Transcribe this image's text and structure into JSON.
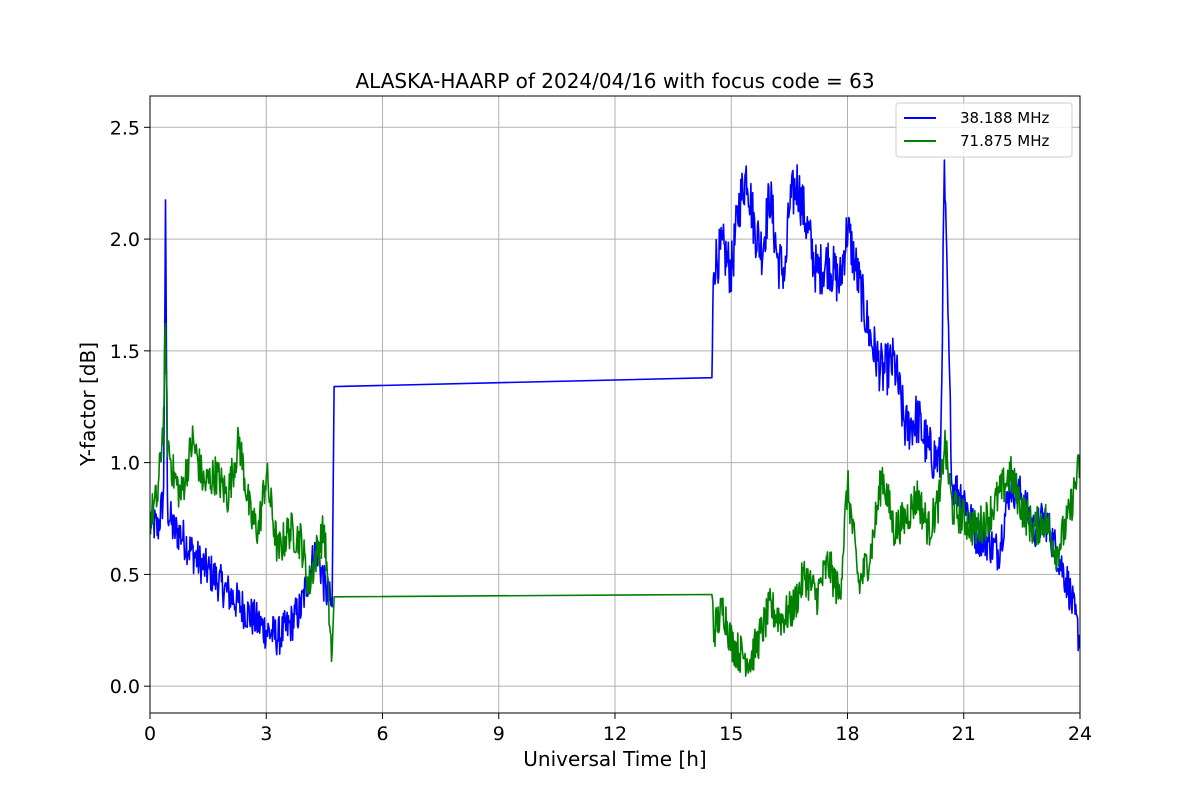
{
  "chart_data": {
    "type": "line",
    "title": "ALASKA-HAARP of 2024/04/16 with focus code = 63",
    "xlabel": "Universal Time [h]",
    "ylabel": "Y-factor [dB]",
    "xlim": [
      0,
      24
    ],
    "ylim": [
      -0.12,
      2.64
    ],
    "xticks": [
      0,
      3,
      6,
      9,
      12,
      15,
      18,
      21,
      24
    ],
    "yticks": [
      0.0,
      0.5,
      1.0,
      1.5,
      2.0,
      2.5
    ],
    "xtick_labels": [
      "0",
      "3",
      "6",
      "9",
      "12",
      "15",
      "18",
      "21",
      "24"
    ],
    "ytick_labels": [
      "0.0",
      "0.5",
      "1.0",
      "1.5",
      "2.0",
      "2.5"
    ],
    "grid": true,
    "legend_position": "top-right",
    "series": [
      {
        "name": "38.188 MHz",
        "color": "#0000ff",
        "x": [
          0,
          0.2,
          0.35,
          0.4,
          0.45,
          0.6,
          0.8,
          1.0,
          1.3,
          1.6,
          2.0,
          2.4,
          2.8,
          3.0,
          3.3,
          3.6,
          3.9,
          4.1,
          4.3,
          4.5,
          4.7,
          4.75,
          14.5,
          14.55,
          14.8,
          15.0,
          15.2,
          15.4,
          15.6,
          15.8,
          16.0,
          16.2,
          16.4,
          16.5,
          16.7,
          16.9,
          17.2,
          17.5,
          17.8,
          18.0,
          18.3,
          18.6,
          18.9,
          19.2,
          19.5,
          19.8,
          20.1,
          20.4,
          20.5,
          20.7,
          21.0,
          21.3,
          21.6,
          21.9,
          22.2,
          22.5,
          22.8,
          23.1,
          23.4,
          23.7,
          24.0
        ],
        "y": [
          0.75,
          0.7,
          0.85,
          2.1,
          0.8,
          0.7,
          0.68,
          0.62,
          0.55,
          0.5,
          0.42,
          0.35,
          0.28,
          0.25,
          0.22,
          0.27,
          0.35,
          0.5,
          0.62,
          0.45,
          0.35,
          1.34,
          1.38,
          1.9,
          1.95,
          1.85,
          2.15,
          2.3,
          2.05,
          1.95,
          2.2,
          1.9,
          1.85,
          2.15,
          2.25,
          2.1,
          1.85,
          1.9,
          1.8,
          2.05,
          1.8,
          1.55,
          1.4,
          1.45,
          1.15,
          1.2,
          1.05,
          1.0,
          2.3,
          0.9,
          0.85,
          0.68,
          0.65,
          0.6,
          0.9,
          0.85,
          0.7,
          0.75,
          0.6,
          0.45,
          0.2
        ]
      },
      {
        "name": "71.875 MHz",
        "color": "#008000",
        "x": [
          0,
          0.2,
          0.35,
          0.4,
          0.45,
          0.6,
          0.8,
          1.1,
          1.4,
          1.7,
          2.0,
          2.3,
          2.6,
          2.8,
          3.0,
          3.3,
          3.6,
          3.9,
          4.1,
          4.3,
          4.5,
          4.7,
          4.75,
          14.5,
          14.55,
          14.8,
          15.0,
          15.2,
          15.5,
          15.8,
          16.0,
          16.3,
          16.6,
          16.9,
          17.2,
          17.5,
          17.8,
          18.0,
          18.3,
          18.6,
          18.9,
          19.2,
          19.5,
          19.8,
          20.1,
          20.4,
          20.5,
          20.7,
          21.0,
          21.3,
          21.6,
          21.9,
          22.2,
          22.5,
          22.8,
          23.1,
          23.4,
          23.7,
          24.0
        ],
        "y": [
          0.75,
          0.85,
          1.2,
          1.6,
          1.1,
          0.95,
          0.85,
          1.1,
          0.9,
          0.95,
          0.85,
          1.1,
          0.75,
          0.7,
          0.95,
          0.6,
          0.7,
          0.65,
          0.45,
          0.6,
          0.7,
          0.1,
          0.4,
          0.41,
          0.25,
          0.35,
          0.2,
          0.15,
          0.12,
          0.25,
          0.35,
          0.3,
          0.35,
          0.5,
          0.4,
          0.55,
          0.4,
          0.9,
          0.45,
          0.6,
          0.95,
          0.7,
          0.75,
          0.85,
          0.7,
          0.85,
          1.1,
          0.8,
          0.75,
          0.7,
          0.75,
          0.85,
          0.95,
          0.8,
          0.7,
          0.75,
          0.6,
          0.75,
          1.0
        ]
      }
    ]
  }
}
